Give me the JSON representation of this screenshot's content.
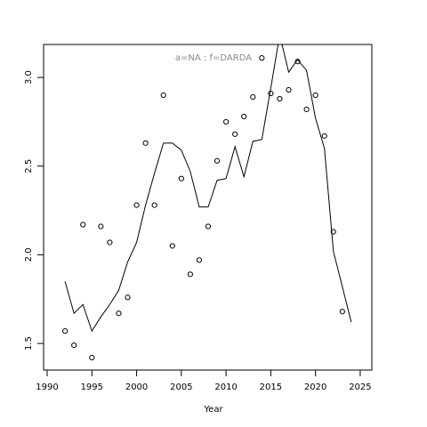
{
  "chart_data": {
    "type": "scatter",
    "annotation": "a=NA  :  f=DARDA",
    "xlabel": "Year",
    "xlim": [
      1989.6,
      2026.3
    ],
    "ylim": [
      1.35,
      3.186
    ],
    "xticks": [
      1990,
      1995,
      2000,
      2005,
      2010,
      2015,
      2020,
      2025
    ],
    "yticks": [
      1.5,
      {
        "value": 2,
        "label": "2.0"
      },
      2.5,
      {
        "value": 3,
        "label": "3.0"
      }
    ],
    "series": [
      {
        "type": "points",
        "color": "#000000",
        "x": [
          1992,
          1993,
          1994,
          1995,
          1996,
          1997,
          1998,
          1999,
          2000,
          2001,
          2002,
          2003,
          2004,
          2005,
          2006,
          2007,
          2008,
          2009,
          2010,
          2011,
          2012,
          2013,
          2014,
          2015,
          2016,
          2017,
          2018,
          2019,
          2020,
          2021,
          2022,
          2023
        ],
        "values": [
          1.57,
          1.49,
          2.17,
          1.42,
          2.16,
          2.07,
          1.67,
          1.76,
          2.28,
          2.63,
          2.28,
          2.9,
          2.05,
          2.43,
          1.89,
          1.97,
          2.16,
          2.53,
          2.75,
          2.68,
          2.78,
          2.89,
          3.11,
          2.91,
          2.88,
          2.93,
          3.09,
          2.82,
          2.9,
          2.67,
          2.13,
          1.68
        ]
      },
      {
        "type": "line",
        "color": "#000000",
        "x": [
          1992,
          1993,
          1994,
          1995,
          1996,
          1997,
          1998,
          1999,
          2000,
          2001,
          2002,
          2003,
          2004,
          2005,
          2006,
          2007,
          2008,
          2009,
          2010,
          2011,
          2012,
          2013,
          2014,
          2015,
          2016,
          2017,
          2018,
          2019,
          2020,
          2021,
          2022,
          2023,
          2024
        ],
        "values": [
          1.85,
          1.67,
          1.72,
          1.57,
          1.65,
          1.72,
          1.8,
          1.96,
          2.07,
          2.28,
          2.46,
          2.63,
          2.63,
          2.59,
          2.47,
          2.27,
          2.27,
          2.42,
          2.43,
          2.61,
          2.44,
          2.64,
          2.65,
          2.94,
          3.24,
          3.03,
          3.1,
          3.04,
          2.77,
          2.6,
          2.02,
          1.82,
          1.62
        ]
      }
    ]
  }
}
